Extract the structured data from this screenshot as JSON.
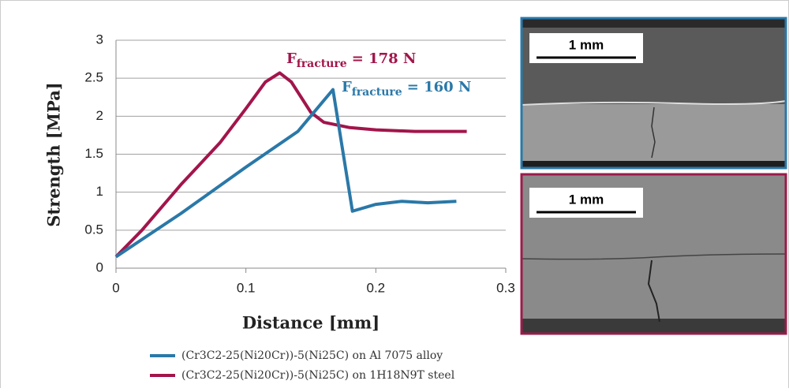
{
  "chart_data": {
    "type": "line",
    "xlabel": "Distance [mm]",
    "ylabel": "Strength [MPa]",
    "xlim": [
      0,
      0.3
    ],
    "xticks": [
      0,
      0.1,
      0.2,
      0.3
    ],
    "ylim": [
      0,
      3
    ],
    "yticks": [
      0,
      0.5,
      1,
      1.5,
      2,
      2.5,
      3
    ],
    "grid": true,
    "series": [
      {
        "name": "(Cr3C2-25(Ni20Cr))-5(Ni25C) on Al 7075 alloy",
        "color": "#2a78a8",
        "x": [
          0,
          0.05,
          0.1,
          0.14,
          0.167,
          0.182,
          0.2,
          0.22,
          0.24,
          0.262
        ],
        "values": [
          0.15,
          0.72,
          1.33,
          1.8,
          2.35,
          0.75,
          0.84,
          0.88,
          0.86,
          0.88
        ]
      },
      {
        "name": "(Cr3C2-25(Ni20Cr))-5(Ni25C) on 1H18N9T steel",
        "color": "#a2154b",
        "x": [
          0,
          0.02,
          0.05,
          0.08,
          0.1,
          0.115,
          0.126,
          0.135,
          0.15,
          0.16,
          0.18,
          0.2,
          0.23,
          0.27
        ],
        "values": [
          0.15,
          0.5,
          1.1,
          1.65,
          2.1,
          2.45,
          2.57,
          2.45,
          2.05,
          1.92,
          1.85,
          1.82,
          1.8,
          1.8
        ]
      }
    ],
    "annotations": [
      {
        "base": "F",
        "sub": "fracture",
        "text": "= 178 N"
      },
      {
        "base": "F",
        "sub": "fracture",
        "text": "= 160 N"
      }
    ]
  },
  "micrographs": [
    {
      "scale_label": "1 mm"
    },
    {
      "scale_label": "1 mm"
    }
  ]
}
